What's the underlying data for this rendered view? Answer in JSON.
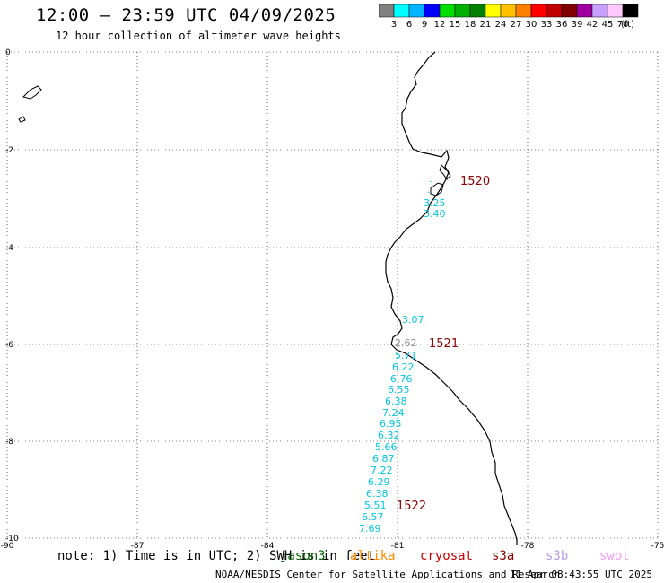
{
  "header": {
    "title": "12:00 — 23:59 UTC 04/09/2025",
    "subtitle": "12 hour collection of altimeter wave heights"
  },
  "legend": {
    "unit": "(ft)",
    "labels": [
      "3",
      "6",
      "9",
      "12",
      "15",
      "18",
      "21",
      "24",
      "27",
      "30",
      "33",
      "36",
      "39",
      "42",
      "45",
      "70"
    ],
    "colors": [
      "#808080",
      "#00ffff",
      "#00b4ff",
      "#0000ff",
      "#00e000",
      "#00b000",
      "#008000",
      "#ffff00",
      "#ffc000",
      "#ff8000",
      "#ff0000",
      "#c00000",
      "#800000",
      "#a000a0",
      "#c8a0ff",
      "#ffc8ff",
      "#000000"
    ]
  },
  "map": {
    "lat_labels": [
      "0",
      "-2",
      "-4",
      "-6",
      "-8",
      "-10"
    ],
    "lon_labels": [
      "-90",
      "-87",
      "-84",
      "-81",
      "-78",
      "-75"
    ],
    "wave_readings": [
      {
        "text": "3.25",
        "color": "#00c8dc"
      },
      {
        "text": "3.40",
        "color": "#00c8dc"
      },
      {
        "text": "3.07",
        "color": "#00c8dc"
      },
      {
        "text": "2.62",
        "color": "#888888"
      },
      {
        "text": "5.71",
        "color": "#00c8dc"
      },
      {
        "text": "6.22",
        "color": "#00c8dc"
      },
      {
        "text": "6.76",
        "color": "#00c8dc"
      },
      {
        "text": "6.55",
        "color": "#00c8dc"
      },
      {
        "text": "6.38",
        "color": "#00c8dc"
      },
      {
        "text": "7.24",
        "color": "#00c8dc"
      },
      {
        "text": "6.95",
        "color": "#00c8dc"
      },
      {
        "text": "6.32",
        "color": "#00c8dc"
      },
      {
        "text": "5.66",
        "color": "#00c8dc"
      },
      {
        "text": "6.87",
        "color": "#00c8dc"
      },
      {
        "text": "7.22",
        "color": "#00c8dc"
      },
      {
        "text": "6.29",
        "color": "#00c8dc"
      },
      {
        "text": "6.38",
        "color": "#00c8dc"
      },
      {
        "text": "5.51",
        "color": "#00c8dc"
      },
      {
        "text": "6.57",
        "color": "#00c8dc"
      },
      {
        "text": "7.69",
        "color": "#00c8dc"
      }
    ],
    "time_labels": [
      {
        "text": "1520",
        "color": "#8b0000"
      },
      {
        "text": "1521",
        "color": "#8b0000"
      },
      {
        "text": "1522",
        "color": "#8b0000"
      }
    ]
  },
  "footer": {
    "note": "note: 1) Time is in UTC; 2) SWH is in feet",
    "satellites": [
      {
        "name": "jason3",
        "color": "#006400"
      },
      {
        "name": "altika",
        "color": "#ff8c00"
      },
      {
        "name": "cryosat",
        "color": "#cc0000"
      },
      {
        "name": "s3a",
        "color": "#8b0000"
      },
      {
        "name": "s3b",
        "color": "#b4a0e6"
      },
      {
        "name": "swot",
        "color": "#f0a0f0"
      }
    ],
    "credit": "NOAA/NESDIS Center for Satellite Applications and Research",
    "timestamp": "11 Apr 08:43:55 UTC 2025"
  }
}
